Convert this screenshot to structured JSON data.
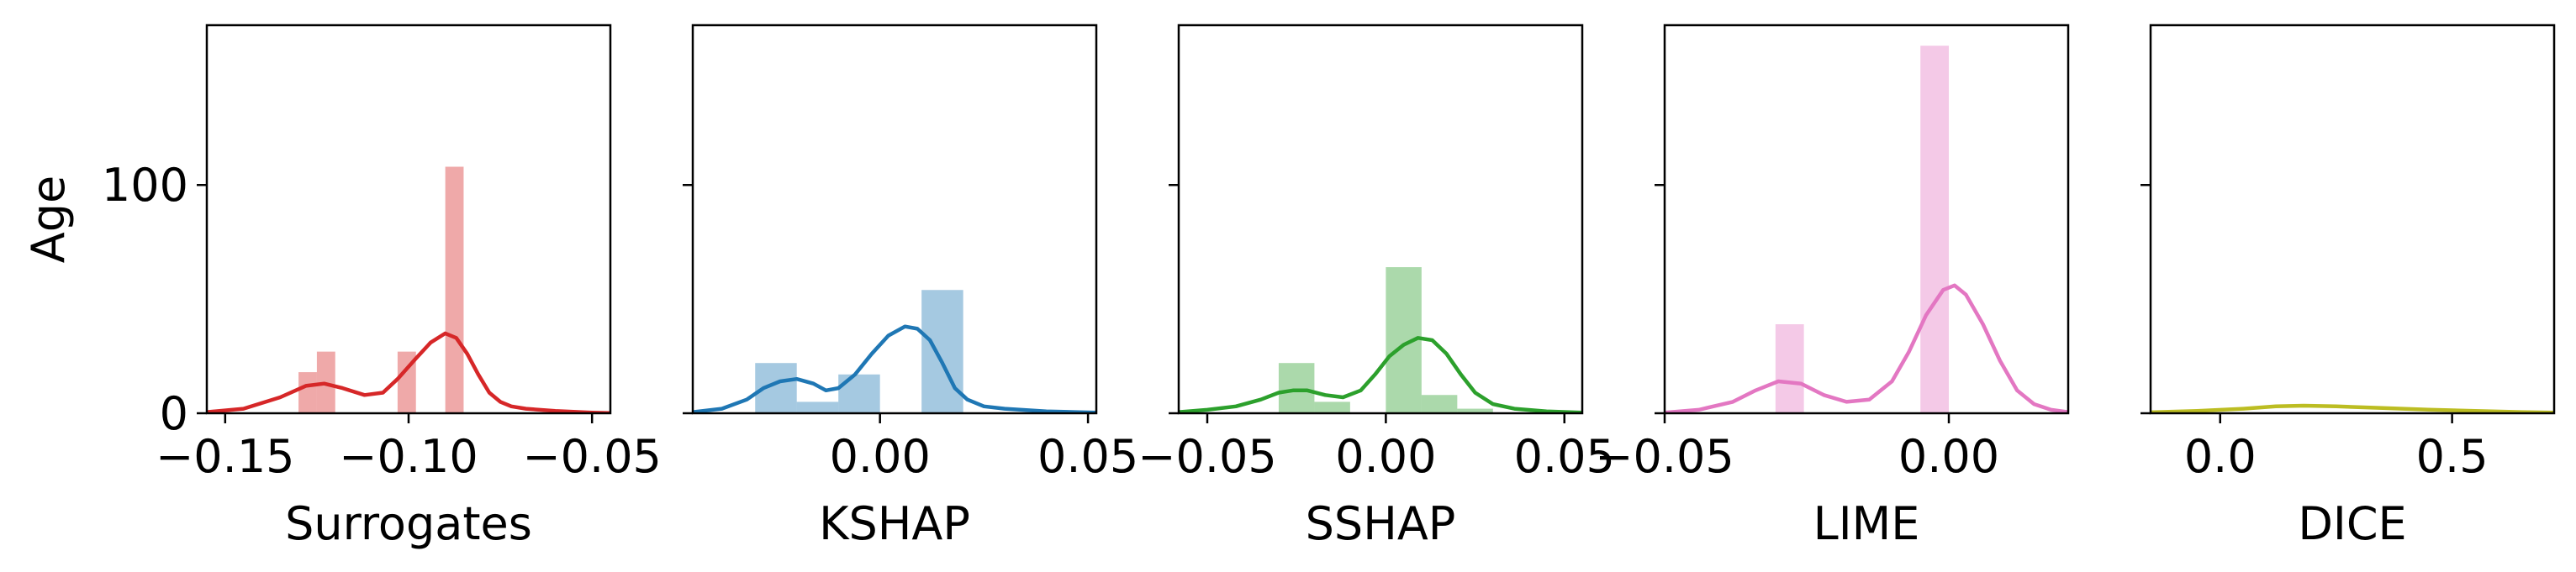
{
  "chart_data": [
    {
      "type": "histogram",
      "xlabel": "Surrogates",
      "ylabel": "Age",
      "color": "#d62728",
      "xlim": [
        -0.155,
        -0.045
      ],
      "ylim": [
        0,
        170
      ],
      "xticks": [
        -0.15,
        -0.1,
        -0.05
      ],
      "xtick_labels": [
        "−0.15",
        "−0.10",
        "−0.05"
      ],
      "yticks": [
        0,
        100
      ],
      "ytick_labels": [
        "0",
        "100"
      ],
      "bins": [
        {
          "x0": -0.13,
          "x1": -0.125,
          "count": 18
        },
        {
          "x0": -0.125,
          "x1": -0.12,
          "count": 27
        },
        {
          "x0": -0.103,
          "x1": -0.098,
          "count": 27
        },
        {
          "x0": -0.09,
          "x1": -0.085,
          "count": 108
        }
      ],
      "kde": [
        [
          -0.155,
          0.5
        ],
        [
          -0.145,
          2
        ],
        [
          -0.135,
          7
        ],
        [
          -0.128,
          12
        ],
        [
          -0.123,
          13
        ],
        [
          -0.118,
          11
        ],
        [
          -0.112,
          8
        ],
        [
          -0.107,
          9
        ],
        [
          -0.103,
          15
        ],
        [
          -0.098,
          24
        ],
        [
          -0.094,
          31
        ],
        [
          -0.09,
          35
        ],
        [
          -0.087,
          33
        ],
        [
          -0.084,
          26
        ],
        [
          -0.081,
          17
        ],
        [
          -0.078,
          9
        ],
        [
          -0.075,
          5
        ],
        [
          -0.072,
          3
        ],
        [
          -0.068,
          2
        ],
        [
          -0.06,
          1
        ],
        [
          -0.05,
          0.3
        ],
        [
          -0.045,
          0.1
        ]
      ]
    },
    {
      "type": "histogram",
      "xlabel": "KSHAP",
      "color": "#1f77b4",
      "xlim": [
        -0.045,
        0.052
      ],
      "ylim": [
        0,
        170
      ],
      "xticks": [
        0.0,
        0.05
      ],
      "xtick_labels": [
        "0.00",
        "0.05"
      ],
      "yticks": [
        0,
        100
      ],
      "bins": [
        {
          "x0": -0.03,
          "x1": -0.02,
          "count": 22
        },
        {
          "x0": -0.02,
          "x1": -0.01,
          "count": 5
        },
        {
          "x0": -0.01,
          "x1": 0.0,
          "count": 17
        },
        {
          "x0": 0.0,
          "x1": 0.01,
          "count": 0
        },
        {
          "x0": 0.01,
          "x1": 0.02,
          "count": 54
        }
      ],
      "kde": [
        [
          -0.045,
          0.5
        ],
        [
          -0.038,
          2
        ],
        [
          -0.032,
          6
        ],
        [
          -0.028,
          11
        ],
        [
          -0.024,
          14
        ],
        [
          -0.02,
          15
        ],
        [
          -0.016,
          13
        ],
        [
          -0.013,
          10
        ],
        [
          -0.01,
          11
        ],
        [
          -0.006,
          17
        ],
        [
          -0.002,
          26
        ],
        [
          0.002,
          34
        ],
        [
          0.006,
          38
        ],
        [
          0.009,
          37
        ],
        [
          0.012,
          32
        ],
        [
          0.015,
          22
        ],
        [
          0.018,
          11
        ],
        [
          0.021,
          6
        ],
        [
          0.025,
          3
        ],
        [
          0.03,
          2
        ],
        [
          0.04,
          0.8
        ],
        [
          0.052,
          0.3
        ]
      ]
    },
    {
      "type": "histogram",
      "xlabel": "SSHAP",
      "color": "#2ca02c",
      "xlim": [
        -0.058,
        0.055
      ],
      "ylim": [
        0,
        170
      ],
      "xticks": [
        -0.05,
        0.0,
        0.05
      ],
      "xtick_labels": [
        "−0.05",
        "0.00",
        "0.05"
      ],
      "yticks": [
        0,
        100
      ],
      "bins": [
        {
          "x0": -0.03,
          "x1": -0.02,
          "count": 22
        },
        {
          "x0": -0.02,
          "x1": -0.01,
          "count": 5
        },
        {
          "x0": 0.0,
          "x1": 0.01,
          "count": 64
        },
        {
          "x0": 0.01,
          "x1": 0.02,
          "count": 8
        },
        {
          "x0": 0.02,
          "x1": 0.03,
          "count": 2
        }
      ],
      "kde": [
        [
          -0.058,
          0.5
        ],
        [
          -0.05,
          1.5
        ],
        [
          -0.042,
          3
        ],
        [
          -0.035,
          6
        ],
        [
          -0.03,
          9
        ],
        [
          -0.026,
          10
        ],
        [
          -0.022,
          10
        ],
        [
          -0.017,
          8
        ],
        [
          -0.012,
          7
        ],
        [
          -0.007,
          10
        ],
        [
          -0.003,
          17
        ],
        [
          0.001,
          25
        ],
        [
          0.005,
          30
        ],
        [
          0.009,
          33
        ],
        [
          0.013,
          32
        ],
        [
          0.017,
          26
        ],
        [
          0.021,
          17
        ],
        [
          0.025,
          9
        ],
        [
          0.03,
          4
        ],
        [
          0.036,
          2
        ],
        [
          0.045,
          0.8
        ],
        [
          0.055,
          0.3
        ]
      ]
    },
    {
      "type": "histogram",
      "xlabel": "LIME",
      "color": "#e377c2",
      "xlim": [
        -0.05,
        0.021
      ],
      "ylim": [
        0,
        170
      ],
      "xticks": [
        -0.05,
        0.0
      ],
      "xtick_labels": [
        "−0.05",
        "0.00"
      ],
      "yticks": [
        0,
        100
      ],
      "bins": [
        {
          "x0": -0.0305,
          "x1": -0.0255,
          "count": 39
        },
        {
          "x0": -0.005,
          "x1": 0.0,
          "count": 161
        }
      ],
      "kde": [
        [
          -0.05,
          0.3
        ],
        [
          -0.044,
          1.5
        ],
        [
          -0.038,
          5
        ],
        [
          -0.034,
          10
        ],
        [
          -0.03,
          14
        ],
        [
          -0.026,
          13
        ],
        [
          -0.022,
          8
        ],
        [
          -0.018,
          5
        ],
        [
          -0.014,
          6
        ],
        [
          -0.01,
          14
        ],
        [
          -0.007,
          27
        ],
        [
          -0.004,
          43
        ],
        [
          -0.001,
          54
        ],
        [
          0.001,
          56
        ],
        [
          0.003,
          52
        ],
        [
          0.006,
          39
        ],
        [
          0.009,
          23
        ],
        [
          0.012,
          10
        ],
        [
          0.015,
          4
        ],
        [
          0.018,
          1.5
        ],
        [
          0.021,
          0.5
        ]
      ]
    },
    {
      "type": "histogram",
      "xlabel": "DICE",
      "color": "#bcbd22",
      "xlim": [
        -0.15,
        0.72
      ],
      "ylim": [
        0,
        170
      ],
      "xticks": [
        0.0,
        0.5
      ],
      "xtick_labels": [
        "0.0",
        "0.5"
      ],
      "yticks": [
        0,
        100
      ],
      "bins": [],
      "kde": [
        [
          -0.15,
          0.4
        ],
        [
          -0.05,
          1
        ],
        [
          0.05,
          2
        ],
        [
          0.12,
          3
        ],
        [
          0.18,
          3.3
        ],
        [
          0.25,
          3
        ],
        [
          0.35,
          2.3
        ],
        [
          0.45,
          1.6
        ],
        [
          0.55,
          1
        ],
        [
          0.65,
          0.5
        ],
        [
          0.72,
          0.3
        ]
      ]
    }
  ]
}
